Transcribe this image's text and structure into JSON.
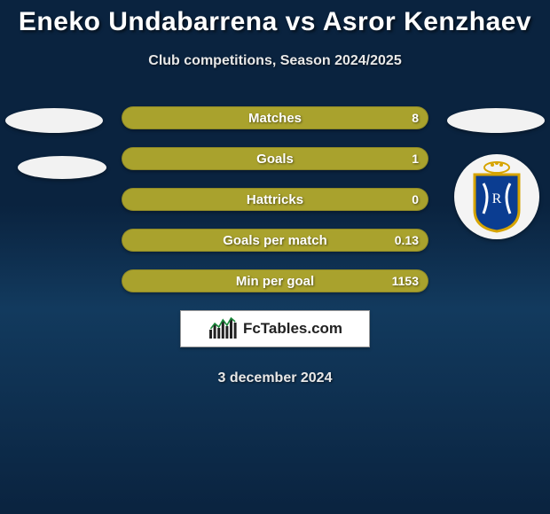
{
  "title": "Eneko Undabarrena vs Asror Kenzhaev",
  "subtitle": "Club competitions, Season 2024/2025",
  "date": "3 december 2024",
  "logo_text": "FcTables.com",
  "bar_color": "#a9a22d",
  "crest_fill": "#0b3d91",
  "crest_stroke": "#d6a400",
  "rows": [
    {
      "label": "Matches",
      "right": "8"
    },
    {
      "label": "Goals",
      "right": "1"
    },
    {
      "label": "Hattricks",
      "right": "0"
    },
    {
      "label": "Goals per match",
      "right": "0.13"
    },
    {
      "label": "Min per goal",
      "right": "1153"
    }
  ],
  "logo_bars": [
    10,
    16,
    12,
    20,
    14,
    22,
    18
  ]
}
